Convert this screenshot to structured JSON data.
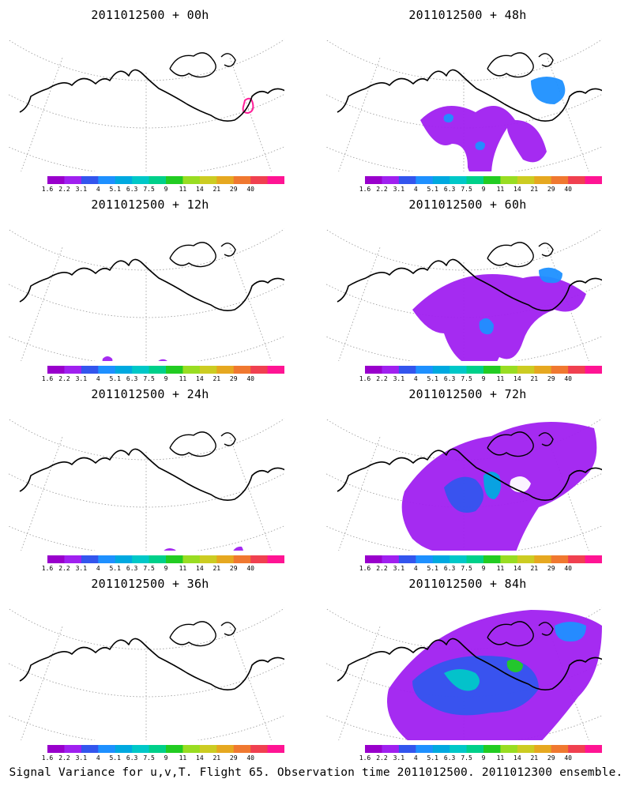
{
  "caption": "Signal Variance for u,v,T. Flight 65. Observation time 2011012500. 2011012300 ensemble.",
  "colorbar": {
    "labels": [
      "1.6",
      "2.2",
      "3.1",
      "4",
      "5.1",
      "6.3",
      "7.5",
      "9",
      "11",
      "14",
      "21",
      "29",
      "40"
    ],
    "colors": [
      "#9900cc",
      "#a020f0",
      "#3355ee",
      "#1e90ff",
      "#00a9e0",
      "#00c8c8",
      "#00d08a",
      "#22cc22",
      "#99dd22",
      "#cccc22",
      "#e6a820",
      "#f07830",
      "#f04050",
      "#ff1493"
    ]
  },
  "panels": [
    {
      "title": "2011012500 + 00h",
      "coverage": 0
    },
    {
      "title": "2011012500 + 12h",
      "coverage": 1
    },
    {
      "title": "2011012500 + 24h",
      "coverage": 2
    },
    {
      "title": "2011012500 + 36h",
      "coverage": 3
    },
    {
      "title": "2011012500 + 48h",
      "coverage": 4
    },
    {
      "title": "2011012500 + 60h",
      "coverage": 5
    },
    {
      "title": "2011012500 + 72h",
      "coverage": 6
    },
    {
      "title": "2011012500 + 84h",
      "coverage": 7
    }
  ]
}
